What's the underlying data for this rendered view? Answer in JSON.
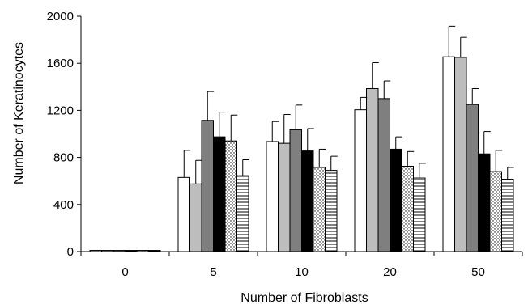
{
  "chart_data": {
    "type": "bar",
    "title": "",
    "xlabel": "Number of Fibroblasts",
    "ylabel": "Number of Keratinocytes",
    "ylim": [
      0,
      2000
    ],
    "yticks": [
      0,
      400,
      800,
      1200,
      1600,
      2000
    ],
    "categories": [
      "0",
      "5",
      "10",
      "20",
      "50"
    ],
    "grid": false,
    "legend": "none",
    "series": [
      {
        "fill": "#ffffff",
        "pattern": "solid",
        "values": [
          10,
          630,
          935,
          1205,
          1655
        ],
        "errors": [
          0,
          230,
          170,
          105,
          260
        ]
      },
      {
        "fill": "#bdbdbd",
        "pattern": "solid",
        "values": [
          10,
          575,
          920,
          1385,
          1650
        ],
        "errors": [
          0,
          200,
          245,
          220,
          170
        ]
      },
      {
        "fill": "#7f7f7f",
        "pattern": "solid",
        "values": [
          10,
          1115,
          1035,
          1300,
          1250
        ],
        "errors": [
          0,
          245,
          210,
          150,
          135
        ]
      },
      {
        "fill": "#000000",
        "pattern": "solid",
        "values": [
          10,
          975,
          855,
          870,
          830
        ],
        "errors": [
          0,
          210,
          190,
          105,
          190
        ]
      },
      {
        "fill": "#ffffff",
        "pattern": "dots",
        "values": [
          10,
          940,
          715,
          725,
          680
        ],
        "errors": [
          0,
          220,
          155,
          125,
          180
        ]
      },
      {
        "fill": "#ffffff",
        "pattern": "horizontal-lines",
        "values": [
          10,
          645,
          690,
          625,
          615
        ],
        "errors": [
          0,
          135,
          120,
          125,
          100
        ]
      }
    ]
  }
}
